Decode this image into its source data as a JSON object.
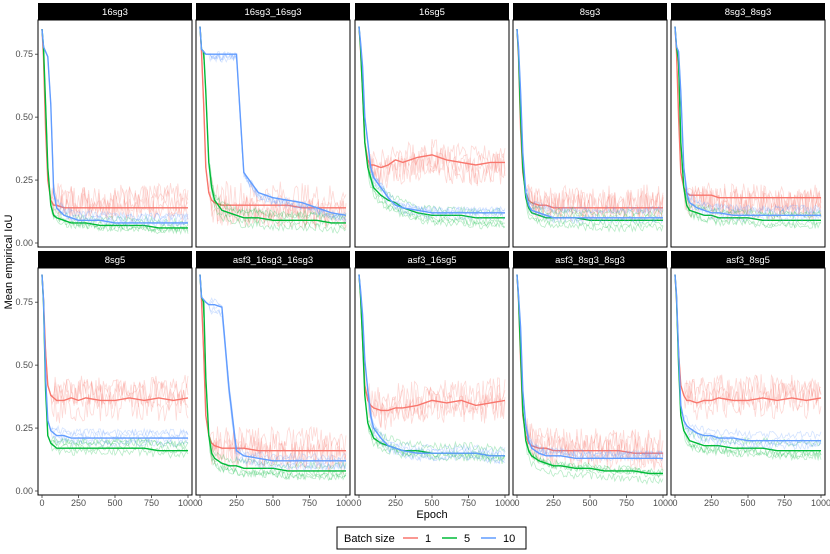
{
  "chart_data": {
    "type": "line",
    "xlabel": "Epoch",
    "ylabel": "Mean empirical IoU",
    "xlim": [
      0,
      1000
    ],
    "ylim": [
      0,
      0.87
    ],
    "x_ticks": [
      0,
      250,
      500,
      750,
      1000
    ],
    "y_ticks": [
      0.0,
      0.25,
      0.5,
      0.75
    ],
    "y_tick_labels": [
      "0.00",
      "0.25",
      "0.50",
      "0.75"
    ],
    "x_tick_labels": [
      "0",
      "250",
      "500",
      "750",
      "1000"
    ],
    "x_sample_epochs": [
      0,
      10,
      25,
      40,
      60,
      80,
      100,
      150,
      200,
      250,
      300,
      400,
      500,
      600,
      700,
      800,
      900,
      1000
    ],
    "legend": {
      "title": "Batch size",
      "entries": [
        {
          "label": "1",
          "color": "#F8766D"
        },
        {
          "label": "5",
          "color": "#00BA38"
        },
        {
          "label": "10",
          "color": "#619CFF"
        }
      ],
      "position": "bottom"
    },
    "panels": [
      {
        "title": "16sg3",
        "series": [
          {
            "name": "1",
            "values": [
              0.85,
              0.74,
              0.45,
              0.25,
              0.17,
              0.15,
              0.15,
              0.14,
              0.14,
              0.14,
              0.14,
              0.14,
              0.14,
              0.14,
              0.14,
              0.14,
              0.14,
              0.14
            ]
          },
          {
            "name": "5",
            "values": [
              0.85,
              0.78,
              0.55,
              0.3,
              0.15,
              0.11,
              0.1,
              0.09,
              0.08,
              0.08,
              0.08,
              0.07,
              0.07,
              0.07,
              0.07,
              0.06,
              0.06,
              0.06
            ]
          },
          {
            "name": "10",
            "values": [
              0.85,
              0.78,
              0.76,
              0.74,
              0.55,
              0.2,
              0.14,
              0.11,
              0.1,
              0.09,
              0.09,
              0.09,
              0.08,
              0.08,
              0.08,
              0.08,
              0.08,
              0.08
            ]
          }
        ]
      },
      {
        "title": "16sg3_16sg3",
        "series": [
          {
            "name": "1",
            "values": [
              0.86,
              0.76,
              0.55,
              0.3,
              0.2,
              0.17,
              0.16,
              0.15,
              0.15,
              0.15,
              0.15,
              0.15,
              0.15,
              0.15,
              0.14,
              0.14,
              0.14,
              0.14
            ]
          },
          {
            "name": "5",
            "values": [
              0.86,
              0.77,
              0.76,
              0.6,
              0.32,
              0.22,
              0.17,
              0.13,
              0.12,
              0.11,
              0.1,
              0.1,
              0.09,
              0.09,
              0.09,
              0.09,
              0.08,
              0.08
            ]
          },
          {
            "name": "10",
            "values": [
              0.86,
              0.77,
              0.76,
              0.75,
              0.75,
              0.75,
              0.75,
              0.75,
              0.75,
              0.75,
              0.28,
              0.2,
              0.18,
              0.17,
              0.16,
              0.14,
              0.12,
              0.11
            ]
          }
        ]
      },
      {
        "title": "16sg5",
        "series": [
          {
            "name": "1",
            "values": [
              0.86,
              0.77,
              0.6,
              0.4,
              0.33,
              0.31,
              0.31,
              0.3,
              0.31,
              0.33,
              0.32,
              0.34,
              0.35,
              0.33,
              0.32,
              0.31,
              0.32,
              0.32
            ]
          },
          {
            "name": "5",
            "values": [
              0.86,
              0.78,
              0.6,
              0.4,
              0.3,
              0.26,
              0.22,
              0.19,
              0.17,
              0.16,
              0.14,
              0.12,
              0.11,
              0.11,
              0.11,
              0.1,
              0.1,
              0.1
            ]
          },
          {
            "name": "10",
            "values": [
              0.86,
              0.8,
              0.7,
              0.5,
              0.4,
              0.3,
              0.26,
              0.22,
              0.18,
              0.15,
              0.14,
              0.13,
              0.12,
              0.12,
              0.12,
              0.12,
              0.12,
              0.12
            ]
          }
        ]
      },
      {
        "title": "8sg3",
        "series": [
          {
            "name": "1",
            "values": [
              0.85,
              0.74,
              0.45,
              0.28,
              0.2,
              0.17,
              0.16,
              0.15,
              0.15,
              0.14,
              0.14,
              0.14,
              0.14,
              0.14,
              0.14,
              0.14,
              0.14,
              0.14
            ]
          },
          {
            "name": "5",
            "values": [
              0.85,
              0.76,
              0.5,
              0.3,
              0.18,
              0.14,
              0.12,
              0.11,
              0.1,
              0.1,
              0.1,
              0.1,
              0.09,
              0.09,
              0.09,
              0.09,
              0.09,
              0.09
            ]
          },
          {
            "name": "10",
            "values": [
              0.85,
              0.78,
              0.6,
              0.36,
              0.2,
              0.15,
              0.13,
              0.12,
              0.11,
              0.1,
              0.1,
              0.1,
              0.1,
              0.1,
              0.1,
              0.1,
              0.1,
              0.1
            ]
          }
        ]
      },
      {
        "title": "8sg3_8sg3",
        "series": [
          {
            "name": "1",
            "values": [
              0.86,
              0.76,
              0.5,
              0.28,
              0.22,
              0.2,
              0.19,
              0.19,
              0.19,
              0.19,
              0.18,
              0.18,
              0.18,
              0.18,
              0.18,
              0.18,
              0.18,
              0.18
            ]
          },
          {
            "name": "5",
            "values": [
              0.86,
              0.78,
              0.72,
              0.4,
              0.22,
              0.15,
              0.13,
              0.12,
              0.11,
              0.11,
              0.1,
              0.1,
              0.1,
              0.09,
              0.09,
              0.09,
              0.09,
              0.09
            ]
          },
          {
            "name": "10",
            "values": [
              0.86,
              0.78,
              0.76,
              0.6,
              0.3,
              0.2,
              0.16,
              0.14,
              0.13,
              0.12,
              0.12,
              0.11,
              0.11,
              0.11,
              0.11,
              0.11,
              0.11,
              0.11
            ]
          }
        ]
      },
      {
        "title": "8sg5",
        "series": [
          {
            "name": "1",
            "values": [
              0.86,
              0.76,
              0.55,
              0.42,
              0.38,
              0.37,
              0.36,
              0.36,
              0.37,
              0.36,
              0.37,
              0.36,
              0.36,
              0.37,
              0.36,
              0.37,
              0.36,
              0.37
            ]
          },
          {
            "name": "5",
            "values": [
              0.86,
              0.75,
              0.4,
              0.22,
              0.19,
              0.18,
              0.17,
              0.17,
              0.17,
              0.17,
              0.17,
              0.17,
              0.17,
              0.17,
              0.17,
              0.16,
              0.16,
              0.16
            ]
          },
          {
            "name": "10",
            "values": [
              0.86,
              0.76,
              0.45,
              0.28,
              0.24,
              0.23,
              0.22,
              0.22,
              0.21,
              0.21,
              0.21,
              0.21,
              0.21,
              0.21,
              0.21,
              0.21,
              0.21,
              0.21
            ]
          }
        ]
      },
      {
        "title": "asf3_16sg3_16sg3",
        "series": [
          {
            "name": "1",
            "values": [
              0.86,
              0.76,
              0.55,
              0.3,
              0.22,
              0.19,
              0.18,
              0.17,
              0.17,
              0.17,
              0.17,
              0.16,
              0.16,
              0.16,
              0.16,
              0.16,
              0.16,
              0.16
            ]
          },
          {
            "name": "5",
            "values": [
              0.86,
              0.77,
              0.75,
              0.45,
              0.22,
              0.15,
              0.13,
              0.11,
              0.1,
              0.1,
              0.09,
              0.09,
              0.09,
              0.08,
              0.08,
              0.08,
              0.08,
              0.08
            ]
          },
          {
            "name": "10",
            "values": [
              0.86,
              0.77,
              0.76,
              0.75,
              0.74,
              0.74,
              0.74,
              0.73,
              0.4,
              0.16,
              0.14,
              0.13,
              0.12,
              0.12,
              0.12,
              0.12,
              0.12,
              0.12
            ]
          }
        ]
      },
      {
        "title": "asf3_16sg5",
        "series": [
          {
            "name": "1",
            "values": [
              0.86,
              0.78,
              0.6,
              0.42,
              0.36,
              0.34,
              0.33,
              0.32,
              0.32,
              0.33,
              0.33,
              0.34,
              0.36,
              0.35,
              0.36,
              0.34,
              0.35,
              0.36
            ]
          },
          {
            "name": "5",
            "values": [
              0.86,
              0.78,
              0.6,
              0.38,
              0.27,
              0.24,
              0.21,
              0.19,
              0.18,
              0.17,
              0.16,
              0.16,
              0.15,
              0.15,
              0.15,
              0.15,
              0.14,
              0.14
            ]
          },
          {
            "name": "10",
            "values": [
              0.86,
              0.8,
              0.7,
              0.52,
              0.4,
              0.3,
              0.25,
              0.21,
              0.18,
              0.17,
              0.16,
              0.15,
              0.15,
              0.15,
              0.15,
              0.15,
              0.14,
              0.14
            ]
          }
        ]
      },
      {
        "title": "asf3_8sg3_8sg3",
        "series": [
          {
            "name": "1",
            "values": [
              0.86,
              0.76,
              0.52,
              0.3,
              0.22,
              0.19,
              0.18,
              0.17,
              0.17,
              0.16,
              0.16,
              0.16,
              0.16,
              0.16,
              0.16,
              0.15,
              0.15,
              0.15
            ]
          },
          {
            "name": "5",
            "values": [
              0.86,
              0.77,
              0.55,
              0.32,
              0.2,
              0.16,
              0.14,
              0.12,
              0.11,
              0.1,
              0.1,
              0.09,
              0.09,
              0.08,
              0.08,
              0.08,
              0.07,
              0.07
            ]
          },
          {
            "name": "10",
            "values": [
              0.86,
              0.78,
              0.65,
              0.4,
              0.26,
              0.2,
              0.17,
              0.15,
              0.14,
              0.14,
              0.14,
              0.13,
              0.13,
              0.13,
              0.13,
              0.13,
              0.13,
              0.13
            ]
          }
        ]
      },
      {
        "title": "asf3_8sg5",
        "series": [
          {
            "name": "1",
            "values": [
              0.86,
              0.76,
              0.55,
              0.42,
              0.38,
              0.36,
              0.36,
              0.35,
              0.36,
              0.36,
              0.37,
              0.36,
              0.36,
              0.37,
              0.36,
              0.37,
              0.36,
              0.37
            ]
          },
          {
            "name": "5",
            "values": [
              0.86,
              0.77,
              0.5,
              0.3,
              0.24,
              0.22,
              0.2,
              0.19,
              0.18,
              0.18,
              0.18,
              0.17,
              0.17,
              0.17,
              0.16,
              0.16,
              0.16,
              0.16
            ]
          },
          {
            "name": "10",
            "values": [
              0.86,
              0.78,
              0.55,
              0.34,
              0.28,
              0.26,
              0.25,
              0.23,
              0.22,
              0.22,
              0.21,
              0.21,
              0.2,
              0.2,
              0.2,
              0.2,
              0.2,
              0.2
            ]
          }
        ]
      }
    ]
  }
}
